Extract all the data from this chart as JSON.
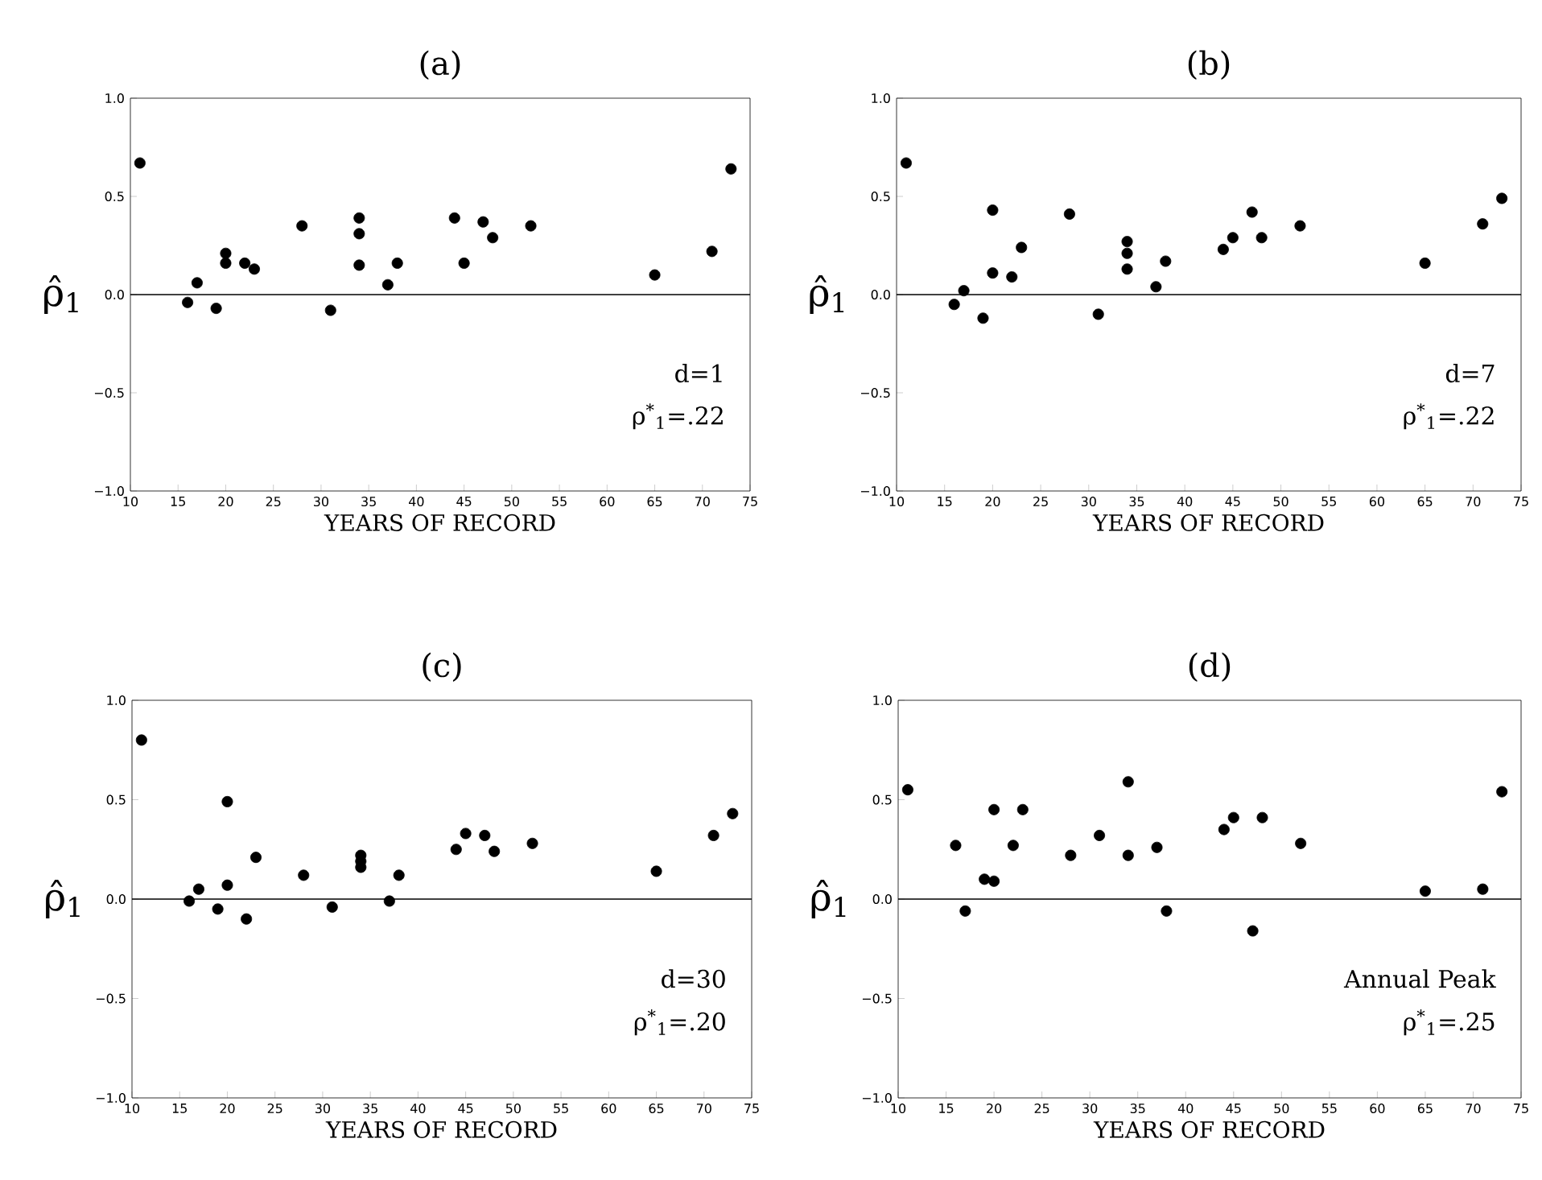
{
  "chart_data": [
    {
      "type": "scatter",
      "title": "(a)",
      "xlabel": "YEARS OF RECORD",
      "ylabel": "ρ̂$_{1}$",
      "color": "#000000",
      "marker": "circle",
      "grid": false,
      "x": [
        11,
        16,
        17,
        19,
        20,
        20,
        22,
        23,
        28,
        31,
        34,
        34,
        34,
        37,
        38,
        44,
        45,
        47,
        48,
        52,
        65,
        71,
        73
      ],
      "values": [
        0.67,
        -0.04,
        0.06,
        -0.07,
        0.21,
        0.16,
        0.16,
        0.13,
        0.35,
        -0.08,
        0.39,
        0.31,
        0.15,
        0.05,
        0.16,
        0.39,
        0.16,
        0.37,
        0.29,
        0.35,
        0.1,
        0.22,
        0.64
      ],
      "xlim": [
        10,
        75
      ],
      "ylim": [
        -1,
        1
      ],
      "xticks": [
        10,
        15,
        20,
        25,
        30,
        35,
        40,
        45,
        50,
        55,
        60,
        65,
        70,
        75
      ],
      "yticks": [
        {
          "value": -1,
          "label": "−1.0"
        },
        {
          "value": -0.5,
          "label": "−0.5"
        },
        {
          "value": 0,
          "label": "0.0"
        },
        {
          "value": 0.5,
          "label": "0.5"
        },
        {
          "value": 1,
          "label": "1.0"
        }
      ],
      "ref_lines": [
        {
          "axis": "y",
          "value": 0,
          "color": "#000000"
        }
      ],
      "annotations": [
        "d=1",
        "ρ$^{*}$$_{1}$=.22"
      ]
    },
    {
      "type": "scatter",
      "title": "(b)",
      "xlabel": "YEARS OF RECORD",
      "ylabel": "ρ̂$_{1}$",
      "color": "#000000",
      "marker": "circle",
      "grid": false,
      "x": [
        11,
        16,
        17,
        19,
        20,
        20,
        22,
        23,
        28,
        31,
        34,
        34,
        34,
        37,
        38,
        44,
        45,
        47,
        48,
        52,
        65,
        71,
        73
      ],
      "values": [
        0.67,
        -0.05,
        0.02,
        -0.12,
        0.43,
        0.11,
        0.09,
        0.24,
        0.41,
        -0.1,
        0.27,
        0.21,
        0.13,
        0.04,
        0.17,
        0.23,
        0.29,
        0.42,
        0.29,
        0.35,
        0.16,
        0.36,
        0.49
      ],
      "xlim": [
        10,
        75
      ],
      "ylim": [
        -1,
        1
      ],
      "xticks": [
        10,
        15,
        20,
        25,
        30,
        35,
        40,
        45,
        50,
        55,
        60,
        65,
        70,
        75
      ],
      "yticks": [
        {
          "value": -1,
          "label": "−1.0"
        },
        {
          "value": -0.5,
          "label": "−0.5"
        },
        {
          "value": 0,
          "label": "0.0"
        },
        {
          "value": 0.5,
          "label": "0.5"
        },
        {
          "value": 1,
          "label": "1.0"
        }
      ],
      "ref_lines": [
        {
          "axis": "y",
          "value": 0,
          "color": "#000000"
        }
      ],
      "annotations": [
        "d=7",
        "ρ$^{*}$$_{1}$=.22"
      ]
    },
    {
      "type": "scatter",
      "title": "(c)",
      "xlabel": "YEARS OF RECORD",
      "ylabel": "ρ̂$_{1}$",
      "color": "#000000",
      "marker": "circle",
      "grid": false,
      "x": [
        11,
        16,
        17,
        19,
        20,
        20,
        22,
        23,
        28,
        31,
        34,
        34,
        34,
        37,
        38,
        44,
        45,
        47,
        48,
        52,
        65,
        71,
        73
      ],
      "values": [
        0.8,
        -0.01,
        0.05,
        -0.05,
        0.49,
        0.07,
        -0.1,
        0.21,
        0.12,
        -0.04,
        0.22,
        0.19,
        0.16,
        -0.01,
        0.12,
        0.25,
        0.33,
        0.32,
        0.24,
        0.28,
        0.14,
        0.32,
        0.43
      ],
      "xlim": [
        10,
        75
      ],
      "ylim": [
        -1,
        1
      ],
      "xticks": [
        10,
        15,
        20,
        25,
        30,
        35,
        40,
        45,
        50,
        55,
        60,
        65,
        70,
        75
      ],
      "yticks": [
        {
          "value": -1,
          "label": "−1.0"
        },
        {
          "value": -0.5,
          "label": "−0.5"
        },
        {
          "value": 0,
          "label": "0.0"
        },
        {
          "value": 0.5,
          "label": "0.5"
        },
        {
          "value": 1,
          "label": "1.0"
        }
      ],
      "ref_lines": [
        {
          "axis": "y",
          "value": 0,
          "color": "#000000"
        }
      ],
      "annotations": [
        "d=30",
        "ρ$^{*}$$_{1}$=.20"
      ]
    },
    {
      "type": "scatter",
      "title": "(d)",
      "xlabel": "YEARS OF RECORD",
      "ylabel": "ρ̂$_{1}$",
      "color": "#000000",
      "marker": "circle",
      "grid": false,
      "x": [
        11,
        16,
        17,
        19,
        20,
        20,
        22,
        23,
        28,
        31,
        34,
        34,
        37,
        38,
        44,
        45,
        47,
        48,
        52,
        65,
        71,
        73
      ],
      "values": [
        0.55,
        0.27,
        -0.06,
        0.1,
        0.09,
        0.45,
        0.27,
        0.45,
        0.22,
        0.32,
        0.59,
        0.22,
        0.26,
        -0.06,
        0.35,
        0.41,
        -0.16,
        0.41,
        0.28,
        0.04,
        0.05,
        0.54
      ],
      "xlim": [
        10,
        75
      ],
      "ylim": [
        -1,
        1
      ],
      "xticks": [
        10,
        15,
        20,
        25,
        30,
        35,
        40,
        45,
        50,
        55,
        60,
        65,
        70,
        75
      ],
      "yticks": [
        {
          "value": -1,
          "label": "−1.0"
        },
        {
          "value": -0.5,
          "label": "−0.5"
        },
        {
          "value": 0,
          "label": "0.0"
        },
        {
          "value": 0.5,
          "label": "0.5"
        },
        {
          "value": 1,
          "label": "1.0"
        }
      ],
      "ref_lines": [
        {
          "axis": "y",
          "value": 0,
          "color": "#000000"
        }
      ],
      "annotations": [
        "Annual Peak",
        "ρ$^{*}$$_{1}$=.25"
      ]
    }
  ]
}
